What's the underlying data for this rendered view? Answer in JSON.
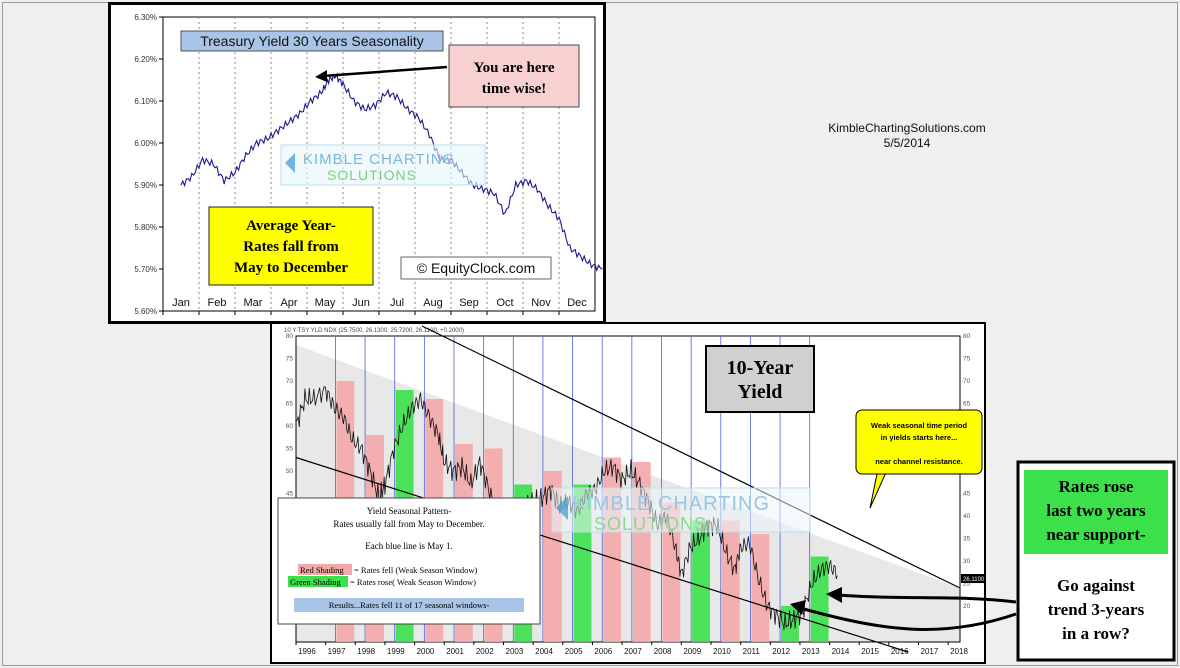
{
  "credit": {
    "site": "KimbleChartingSolutions.com",
    "date": "5/5/2014"
  },
  "colors": {
    "line": "#1a1a8c",
    "red_shade": "#f4a9a9",
    "green_shade": "#3be04a",
    "title_box": "#a9c4e6",
    "callout_pink": "#f7d0d0",
    "callout_yellow": "#ffff00"
  },
  "chart_data": [
    {
      "type": "line",
      "title": "Treasury Yield 30 Years Seasonality",
      "xlabel": "",
      "ylabel": "",
      "categories": [
        "Jan",
        "Feb",
        "Mar",
        "Apr",
        "May",
        "Jun",
        "Jul",
        "Aug",
        "Sep",
        "Oct",
        "Nov",
        "Dec"
      ],
      "y_ticks": [
        "6.30%",
        "6.20%",
        "6.10%",
        "6.00%",
        "5.90%",
        "5.80%",
        "5.70%",
        "5.60%"
      ],
      "ylim": [
        5.6,
        6.3
      ],
      "grid": "vertical-dotted",
      "x": [
        0,
        0.3,
        0.6,
        0.9,
        1.2,
        1.5,
        1.8,
        2.1,
        2.4,
        2.7,
        3.0,
        3.3,
        3.6,
        3.9,
        4.1,
        4.3,
        4.5,
        4.8,
        5.1,
        5.4,
        5.7,
        6.0,
        6.3,
        6.6,
        6.9,
        7.2,
        7.5,
        7.8,
        8.1,
        8.4,
        8.7,
        9.0,
        9.3,
        9.6,
        9.9,
        10.2,
        10.5,
        10.8,
        11.1,
        11.4,
        11.7
      ],
      "values": [
        5.9,
        5.92,
        5.96,
        5.95,
        5.91,
        5.93,
        5.97,
        6.0,
        6.01,
        6.03,
        6.05,
        6.07,
        6.1,
        6.12,
        6.15,
        6.16,
        6.14,
        6.1,
        6.08,
        6.09,
        6.12,
        6.11,
        6.08,
        6.06,
        6.02,
        5.96,
        5.96,
        5.93,
        5.9,
        5.89,
        5.88,
        5.83,
        5.9,
        5.91,
        5.89,
        5.85,
        5.82,
        5.75,
        5.73,
        5.71,
        5.7
      ],
      "annotations": [
        "You are here time wise!",
        "Average Year- Rates fall from May to December",
        "© EquityClock.com",
        "KIMBLE CHARTING SOLUTIONS"
      ]
    },
    {
      "type": "line",
      "title": "10-Year Yield",
      "xlabel": "",
      "ylabel": "",
      "header": "10 Y TSY YLD NDX (25.7500, 26.1300, 25.7200, 26.1100, +0.2000)",
      "categories": [
        "1996",
        "1997",
        "1998",
        "1999",
        "2000",
        "2001",
        "2002",
        "2003",
        "2004",
        "2005",
        "2006",
        "2007",
        "2008",
        "2009",
        "2010",
        "2011",
        "2012",
        "2013",
        "2014",
        "2015",
        "2016",
        "2017",
        "2018"
      ],
      "y_ticks": [
        "80",
        "75",
        "70",
        "65",
        "60",
        "55",
        "50",
        "45",
        "40",
        "35",
        "30",
        "25",
        "20"
      ],
      "right_ticks": [
        "80",
        "75",
        "70",
        "65",
        "60",
        "55",
        "50",
        "45",
        "40",
        "35",
        "30",
        "25",
        "20"
      ],
      "last_value_label": "26.1100",
      "seasonal_windows": [
        {
          "year": 1997,
          "result": "fell",
          "top": 70
        },
        {
          "year": 1998,
          "result": "fell",
          "top": 58
        },
        {
          "year": 1999,
          "result": "rose",
          "top": 68
        },
        {
          "year": 2000,
          "result": "fell",
          "top": 66
        },
        {
          "year": 2001,
          "result": "fell",
          "top": 56
        },
        {
          "year": 2002,
          "result": "fell",
          "top": 55
        },
        {
          "year": 2003,
          "result": "rose",
          "top": 47
        },
        {
          "year": 2004,
          "result": "fell",
          "top": 50
        },
        {
          "year": 2005,
          "result": "rose",
          "top": 47
        },
        {
          "year": 2006,
          "result": "fell",
          "top": 53
        },
        {
          "year": 2007,
          "result": "fell",
          "top": 52
        },
        {
          "year": 2008,
          "result": "fell",
          "top": 43
        },
        {
          "year": 2009,
          "result": "rose",
          "top": 39
        },
        {
          "year": 2010,
          "result": "fell",
          "top": 39
        },
        {
          "year": 2011,
          "result": "fell",
          "top": 36
        },
        {
          "year": 2012,
          "result": "rose",
          "top": 20
        },
        {
          "year": 2013,
          "result": "rose",
          "top": 31
        }
      ],
      "x": [
        1996.0,
        1996.3,
        1996.6,
        1997.0,
        1997.3,
        1997.6,
        1997.9,
        1998.2,
        1998.5,
        1998.8,
        1999.0,
        1999.3,
        1999.6,
        1999.9,
        2000.2,
        2000.5,
        2000.8,
        2001.0,
        2001.3,
        2001.6,
        2001.9,
        2002.2,
        2002.5,
        2002.8,
        2003.1,
        2003.4,
        2003.7,
        2004.0,
        2004.3,
        2004.6,
        2004.9,
        2005.2,
        2005.5,
        2005.8,
        2006.1,
        2006.4,
        2006.7,
        2007.0,
        2007.3,
        2007.6,
        2007.9,
        2008.2,
        2008.5,
        2008.8,
        2009.0,
        2009.3,
        2009.6,
        2009.9,
        2010.2,
        2010.5,
        2010.8,
        2011.0,
        2011.3,
        2011.6,
        2011.9,
        2012.2,
        2012.5,
        2012.8,
        2013.1,
        2013.4,
        2013.7,
        2014.0,
        2014.3
      ],
      "values": [
        60,
        66,
        66,
        68,
        64,
        62,
        57,
        55,
        50,
        44,
        47,
        55,
        60,
        64,
        66,
        62,
        58,
        52,
        50,
        51,
        47,
        52,
        46,
        40,
        40,
        35,
        43,
        43,
        44,
        46,
        42,
        43,
        41,
        45,
        46,
        50,
        51,
        48,
        50,
        47,
        43,
        38,
        40,
        33,
        27,
        33,
        35,
        38,
        38,
        32,
        28,
        33,
        34,
        26,
        20,
        18,
        16,
        17,
        19,
        25,
        28,
        29,
        27
      ],
      "legend": [
        "Yield Seasonal Pattern-",
        "Rates usually fall from May to December.",
        "Each blue line is May 1.",
        "= Rates fell (Weak Season Window)",
        "= Rates rose( Weak Season Window)",
        "Results...Rates fell 11 of 17 seasonal windows-"
      ],
      "legend_red_label": "Red Shading",
      "legend_green_label": "Green Shading",
      "callout_yellow": [
        "Weak seasonal time period",
        "in yields starts here...",
        "near channel resistance."
      ],
      "callout_green": [
        "Rates rose",
        "last two years",
        "near support-"
      ],
      "callout_question": [
        "Go against",
        "trend 3-years",
        "in a row?"
      ],
      "watermark": [
        "KIMBLE CHARTING",
        "SOLUTIONS"
      ]
    }
  ]
}
